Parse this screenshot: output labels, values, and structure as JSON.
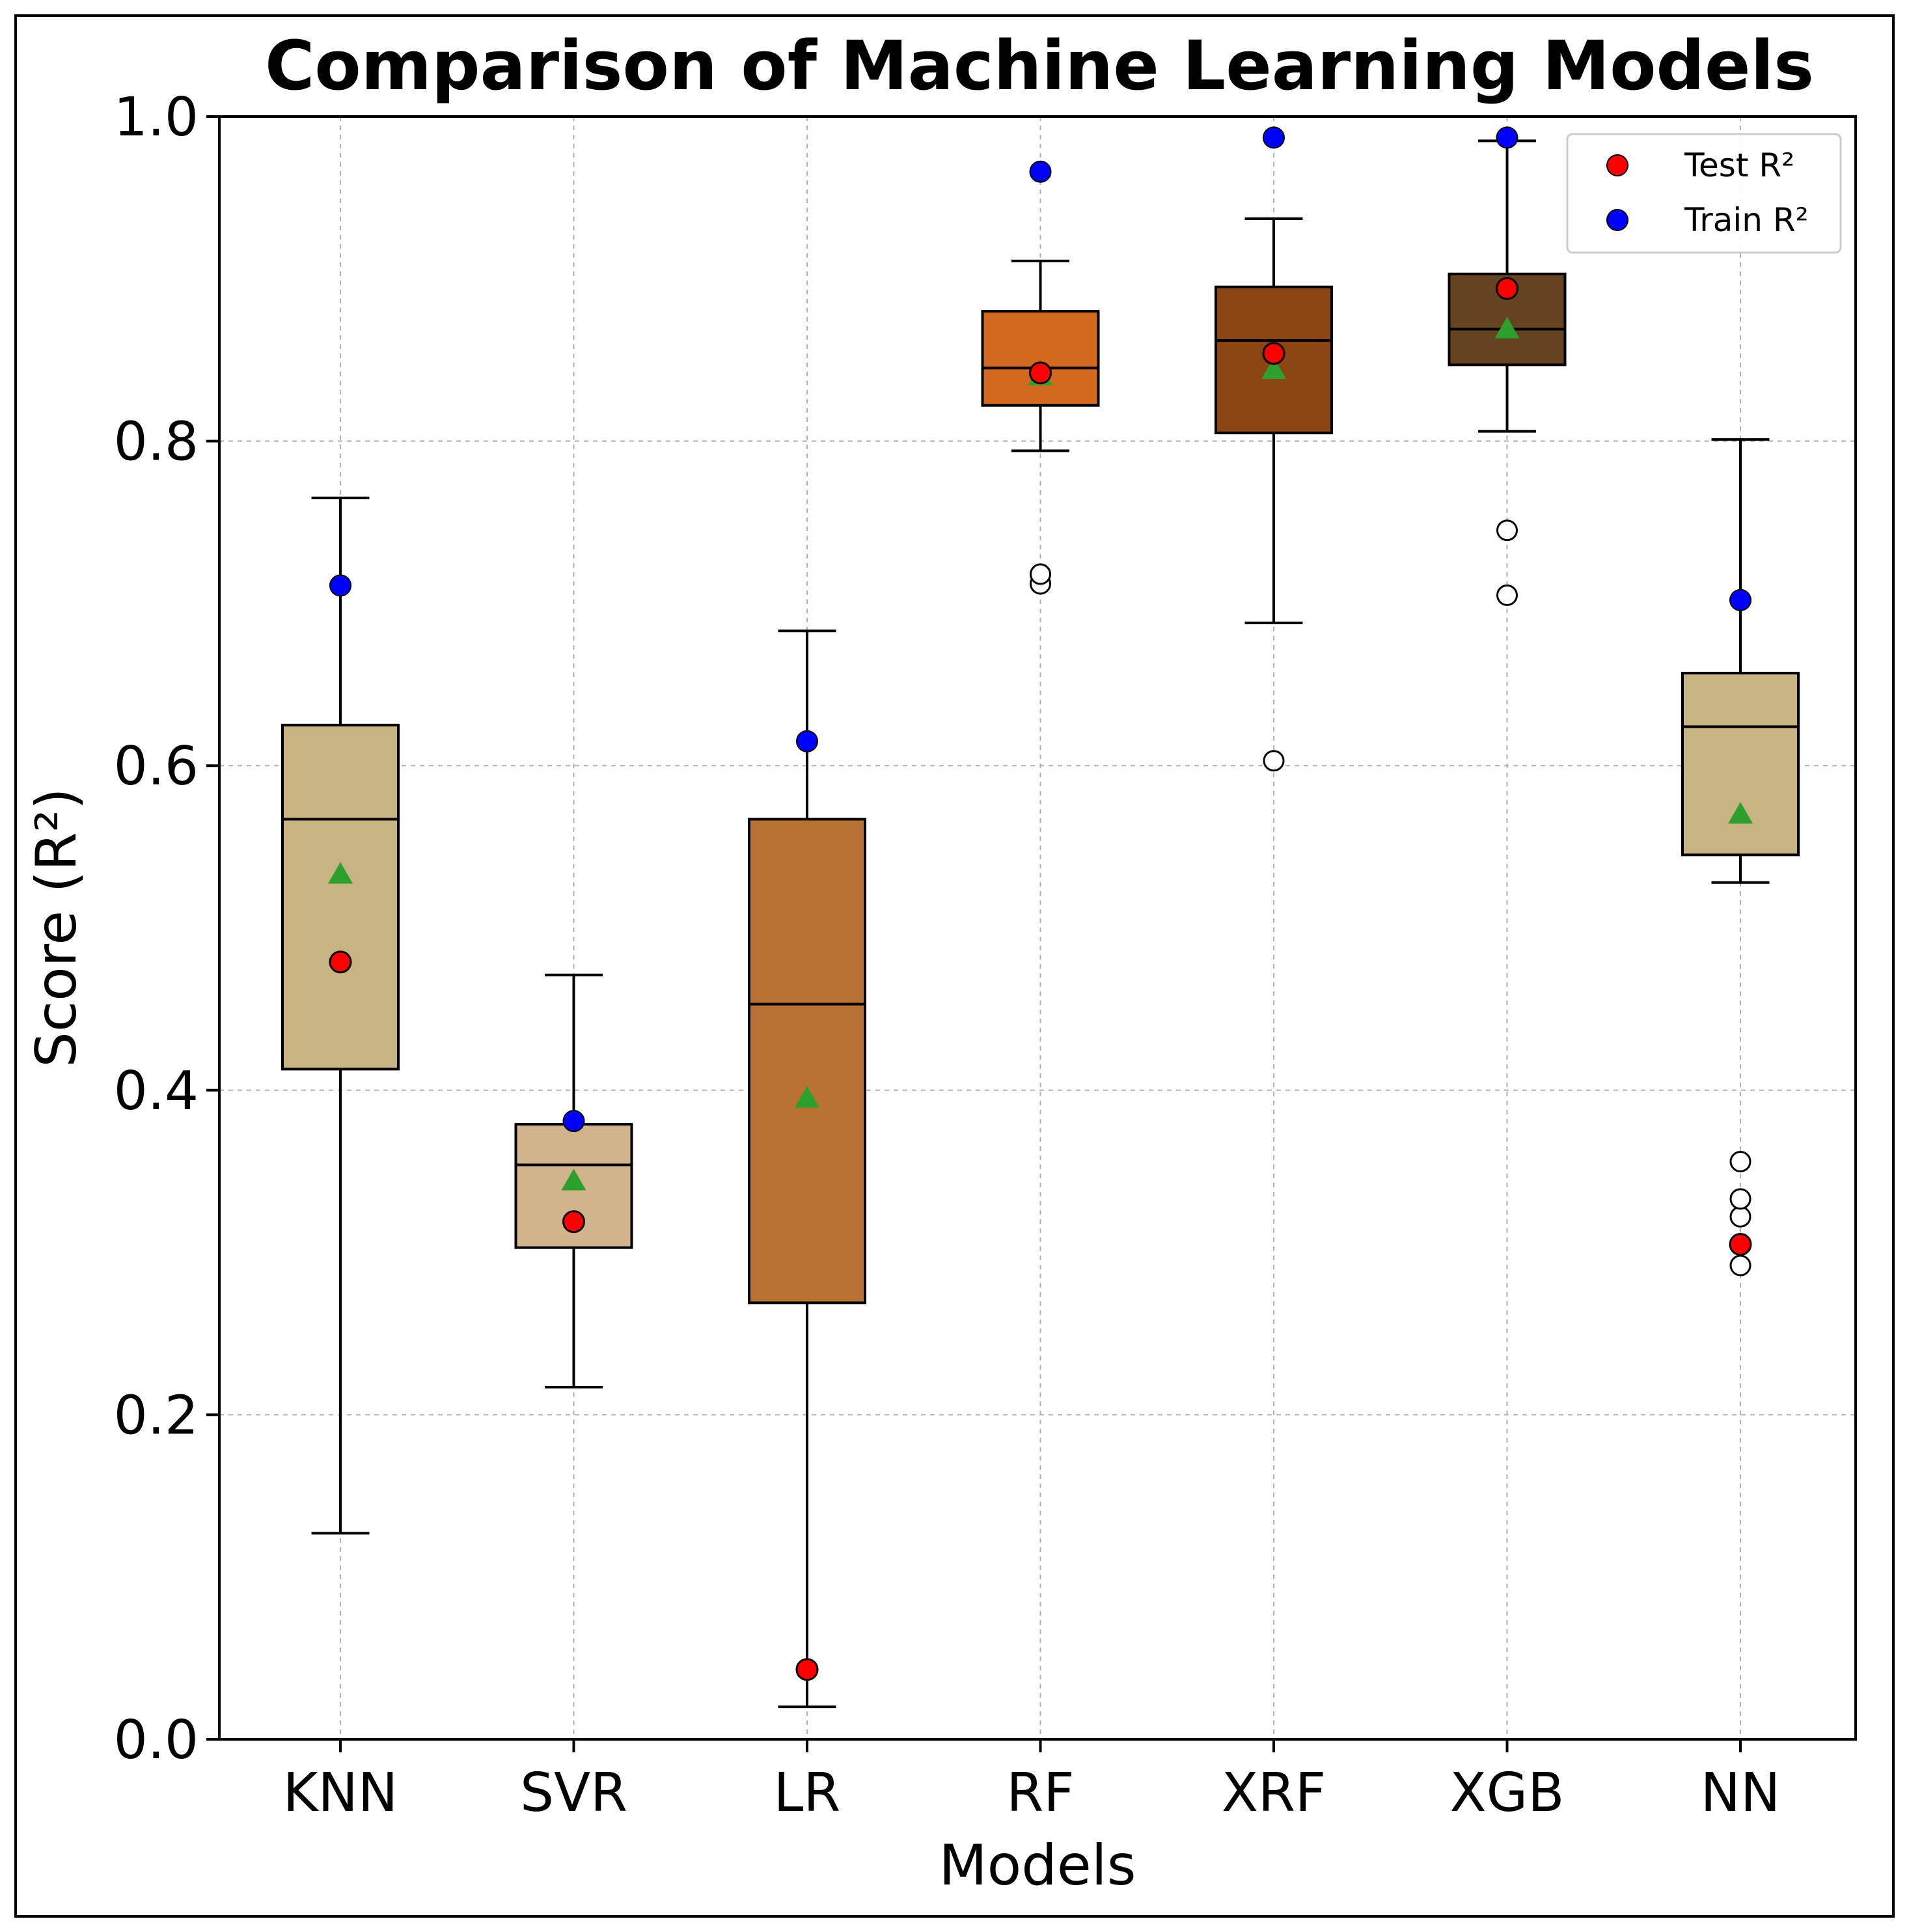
{
  "chart_data": {
    "type": "box",
    "title": "Comparison of Machine Learning Models",
    "xlabel": "Models",
    "ylabel": "Score (R²)",
    "ylim": [
      0.0,
      1.0
    ],
    "yticks": [
      0.0,
      0.2,
      0.4,
      0.6,
      0.8,
      1.0
    ],
    "ytick_labels": [
      "0.0",
      "0.2",
      "0.4",
      "0.6",
      "0.8",
      "1.0"
    ],
    "grid": true,
    "legend": {
      "position": "top-right",
      "entries": [
        {
          "label": "Test R²",
          "color": "#ff0000"
        },
        {
          "label": "Train R²",
          "color": "#0000ff"
        }
      ]
    },
    "mean_marker_color": "#2ca02c",
    "categories": [
      "KNN",
      "SVR",
      "LR",
      "RF",
      "XRF",
      "XGB",
      "NN"
    ],
    "boxes": [
      {
        "model": "KNN",
        "color": "#c8b482",
        "whisker_low": 0.127,
        "q1": 0.413,
        "median": 0.567,
        "q3": 0.625,
        "whisker_high": 0.765,
        "mean": 0.533,
        "outliers": [],
        "test_r2": 0.479,
        "train_r2": 0.711
      },
      {
        "model": "SVR",
        "color": "#d2b48c",
        "whisker_low": 0.217,
        "q1": 0.303,
        "median": 0.354,
        "q3": 0.379,
        "whisker_high": 0.471,
        "mean": 0.344,
        "outliers": [],
        "test_r2": 0.319,
        "train_r2": 0.381
      },
      {
        "model": "LR",
        "color": "#b87333",
        "whisker_low": 0.02,
        "q1": 0.269,
        "median": 0.453,
        "q3": 0.567,
        "whisker_high": 0.683,
        "mean": 0.395,
        "outliers": [],
        "test_r2": 0.043,
        "train_r2": 0.615
      },
      {
        "model": "RF",
        "color": "#d2691e",
        "whisker_low": 0.794,
        "q1": 0.822,
        "median": 0.845,
        "q3": 0.88,
        "whisker_high": 0.911,
        "mean": 0.84,
        "outliers": [
          0.712,
          0.718
        ],
        "test_r2": 0.842,
        "train_r2": 0.966
      },
      {
        "model": "XRF",
        "color": "#8b4513",
        "whisker_low": 0.688,
        "q1": 0.805,
        "median": 0.862,
        "q3": 0.895,
        "whisker_high": 0.937,
        "mean": 0.844,
        "outliers": [
          0.603
        ],
        "test_r2": 0.854,
        "train_r2": 0.987
      },
      {
        "model": "XGB",
        "color": "#654321",
        "whisker_low": 0.806,
        "q1": 0.847,
        "median": 0.869,
        "q3": 0.903,
        "whisker_high": 0.985,
        "mean": 0.869,
        "outliers": [
          0.705,
          0.745
        ],
        "test_r2": 0.894,
        "train_r2": 0.987
      },
      {
        "model": "NN",
        "color": "#c8b482",
        "whisker_low": 0.528,
        "q1": 0.545,
        "median": 0.624,
        "q3": 0.657,
        "whisker_high": 0.801,
        "mean": 0.57,
        "outliers": [
          0.292,
          0.322,
          0.333,
          0.356
        ],
        "test_r2": 0.305,
        "train_r2": 0.702
      }
    ]
  }
}
